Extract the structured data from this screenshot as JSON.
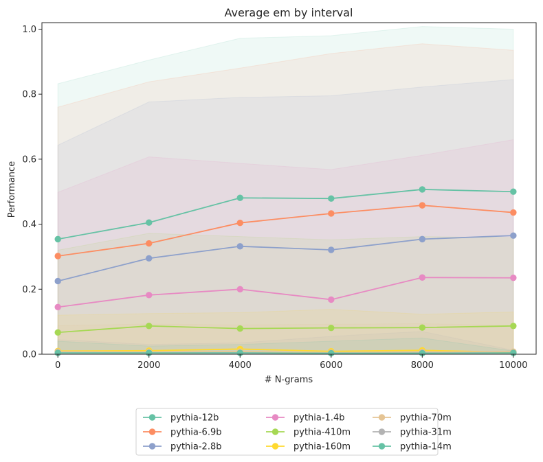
{
  "chart_data": {
    "type": "line",
    "title": "Average em by interval",
    "xlabel": "# N-grams",
    "ylabel": "Performance",
    "xlim": [
      -350,
      10500
    ],
    "ylim": [
      0,
      1.02
    ],
    "x_ticks": [
      0,
      2000,
      4000,
      6000,
      8000,
      10000
    ],
    "y_ticks": [
      0.0,
      0.2,
      0.4,
      0.6,
      0.8,
      1.0
    ],
    "x_tick_labels": [
      "0",
      "2000",
      "4000",
      "6000",
      "8000",
      "10000"
    ],
    "y_tick_labels": [
      "0.0",
      "0.2",
      "0.4",
      "0.6",
      "0.8",
      "1.0"
    ],
    "grid": false,
    "legend_position": "bottom-center",
    "x": [
      0,
      2000,
      4000,
      6000,
      8000,
      10000
    ],
    "series": [
      {
        "name": "pythia-12b",
        "color": "#66c2a5",
        "values": [
          0.354,
          0.405,
          0.481,
          0.479,
          0.507,
          0.5
        ],
        "band_upper": [
          0.832,
          0.905,
          0.972,
          0.98,
          1.008,
          1.0
        ],
        "band_lower": [
          0.0,
          0.0,
          0.0,
          0.0,
          0.0,
          0.0
        ]
      },
      {
        "name": "pythia-6.9b",
        "color": "#fc8d62",
        "values": [
          0.302,
          0.341,
          0.404,
          0.433,
          0.458,
          0.436
        ],
        "band_upper": [
          0.76,
          0.838,
          0.88,
          0.925,
          0.955,
          0.935
        ],
        "band_lower": [
          0.0,
          0.0,
          0.0,
          0.0,
          0.0,
          0.0
        ]
      },
      {
        "name": "pythia-2.8b",
        "color": "#8da0cb",
        "values": [
          0.225,
          0.295,
          0.332,
          0.321,
          0.354,
          0.365
        ],
        "band_upper": [
          0.643,
          0.776,
          0.79,
          0.795,
          0.822,
          0.845
        ],
        "band_lower": [
          0.0,
          0.0,
          0.0,
          0.0,
          0.0,
          0.0
        ]
      },
      {
        "name": "pythia-1.4b",
        "color": "#e78ac3",
        "values": [
          0.145,
          0.182,
          0.2,
          0.168,
          0.236,
          0.235
        ],
        "band_upper": [
          0.498,
          0.607,
          0.587,
          0.568,
          0.612,
          0.66
        ],
        "band_lower": [
          0.0,
          0.0,
          0.0,
          0.0,
          0.0,
          0.0
        ]
      },
      {
        "name": "pythia-410m",
        "color": "#a6d854",
        "values": [
          0.067,
          0.087,
          0.079,
          0.081,
          0.082,
          0.087
        ],
        "band_upper": [
          0.32,
          0.372,
          0.362,
          0.352,
          0.362,
          0.358
        ],
        "band_lower": [
          0.0,
          0.0,
          0.0,
          0.0,
          0.0,
          0.0
        ]
      },
      {
        "name": "pythia-160m",
        "color": "#ffd92f",
        "values": [
          0.01,
          0.011,
          0.016,
          0.009,
          0.012,
          0.006
        ],
        "band_upper": [
          0.12,
          0.125,
          0.128,
          0.138,
          0.123,
          0.13
        ],
        "band_lower": [
          0.0,
          0.0,
          0.0,
          0.0,
          0.0,
          0.0
        ]
      },
      {
        "name": "pythia-70m",
        "color": "#e5c494",
        "values": [
          0.008,
          0.007,
          0.008,
          0.005,
          0.007,
          0.008
        ],
        "band_upper": [
          0.088,
          0.093,
          0.09,
          0.092,
          0.094,
          0.088
        ],
        "band_lower": [
          0.0,
          0.0,
          0.0,
          0.0,
          0.0,
          0.0
        ]
      },
      {
        "name": "pythia-31m",
        "color": "#b3b3b3",
        "values": [
          0.004,
          0.004,
          0.004,
          0.003,
          0.004,
          0.004
        ],
        "band_upper": [
          0.045,
          0.03,
          0.035,
          0.055,
          0.07,
          0.012
        ],
        "band_lower": [
          0.0,
          0.0,
          0.0,
          0.0,
          0.0,
          0.0
        ]
      },
      {
        "name": "pythia-14m",
        "color": "#66c2a5",
        "values": [
          0.004,
          0.004,
          0.004,
          0.003,
          0.003,
          0.004
        ],
        "band_upper": [
          0.04,
          0.025,
          0.03,
          0.04,
          0.05,
          0.01
        ],
        "band_lower": [
          0.0,
          0.0,
          0.0,
          0.0,
          0.0,
          0.0
        ]
      }
    ]
  }
}
